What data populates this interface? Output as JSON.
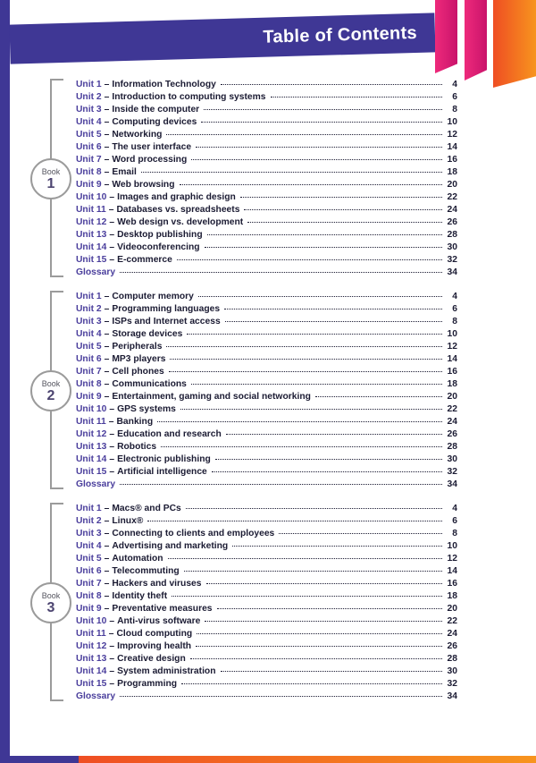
{
  "header": {
    "title": "Table of Contents"
  },
  "separator": "–",
  "colors": {
    "purple": "#3f3795",
    "unit-purple": "#4a3e9c",
    "ink": "#1b1b33",
    "pink": "#ee2a7b",
    "pink-dark": "#c9136b",
    "orange": "#f7941e",
    "orange-dark": "#ef4e23",
    "bracket-gray": "#9b9b9b"
  },
  "books": [
    {
      "label": "Book",
      "number": "1",
      "entries": [
        {
          "unit": "Unit 1",
          "title": "Information Technology",
          "page": 4
        },
        {
          "unit": "Unit 2",
          "title": "Introduction to computing systems",
          "page": 6
        },
        {
          "unit": "Unit 3",
          "title": "Inside the computer",
          "page": 8
        },
        {
          "unit": "Unit 4",
          "title": "Computing devices",
          "page": 10
        },
        {
          "unit": "Unit 5",
          "title": "Networking",
          "page": 12
        },
        {
          "unit": "Unit 6",
          "title": "The user interface",
          "page": 14
        },
        {
          "unit": "Unit 7",
          "title": "Word processing",
          "page": 16
        },
        {
          "unit": "Unit 8",
          "title": "Email",
          "page": 18
        },
        {
          "unit": "Unit 9",
          "title": "Web browsing",
          "page": 20
        },
        {
          "unit": "Unit 10",
          "title": "Images and graphic design",
          "page": 22
        },
        {
          "unit": "Unit 11",
          "title": "Databases vs. spreadsheets",
          "page": 24
        },
        {
          "unit": "Unit 12",
          "title": "Web design vs. development",
          "page": 26
        },
        {
          "unit": "Unit 13",
          "title": "Desktop publishing",
          "page": 28
        },
        {
          "unit": "Unit 14",
          "title": "Videoconferencing",
          "page": 30
        },
        {
          "unit": "Unit 15",
          "title": "E-commerce",
          "page": 32
        },
        {
          "unit": "Glossary",
          "title": "",
          "page": 34
        }
      ]
    },
    {
      "label": "Book",
      "number": "2",
      "entries": [
        {
          "unit": "Unit 1",
          "title": "Computer memory",
          "page": 4
        },
        {
          "unit": "Unit 2",
          "title": "Programming languages",
          "page": 6
        },
        {
          "unit": "Unit 3",
          "title": "ISPs and Internet access",
          "page": 8
        },
        {
          "unit": "Unit 4",
          "title": "Storage devices",
          "page": 10
        },
        {
          "unit": "Unit 5",
          "title": "Peripherals",
          "page": 12
        },
        {
          "unit": "Unit 6",
          "title": "MP3 players",
          "page": 14
        },
        {
          "unit": "Unit 7",
          "title": "Cell phones",
          "page": 16
        },
        {
          "unit": "Unit 8",
          "title": "Communications",
          "page": 18
        },
        {
          "unit": "Unit 9",
          "title": "Entertainment, gaming and social networking",
          "page": 20
        },
        {
          "unit": "Unit 10",
          "title": "GPS systems",
          "page": 22
        },
        {
          "unit": "Unit 11",
          "title": "Banking",
          "page": 24
        },
        {
          "unit": "Unit 12",
          "title": "Education and research",
          "page": 26
        },
        {
          "unit": "Unit 13",
          "title": "Robotics",
          "page": 28
        },
        {
          "unit": "Unit 14",
          "title": "Electronic publishing",
          "page": 30
        },
        {
          "unit": "Unit 15",
          "title": "Artificial intelligence",
          "page": 32
        },
        {
          "unit": "Glossary",
          "title": "",
          "page": 34
        }
      ]
    },
    {
      "label": "Book",
      "number": "3",
      "entries": [
        {
          "unit": "Unit 1",
          "title": "Macs® and PCs",
          "page": 4
        },
        {
          "unit": "Unit 2",
          "title": "Linux®",
          "page": 6
        },
        {
          "unit": "Unit 3",
          "title": "Connecting to clients and employees",
          "page": 8
        },
        {
          "unit": "Unit 4",
          "title": "Advertising and marketing",
          "page": 10
        },
        {
          "unit": "Unit 5",
          "title": "Automation",
          "page": 12
        },
        {
          "unit": "Unit 6",
          "title": "Telecommuting",
          "page": 14
        },
        {
          "unit": "Unit 7",
          "title": "Hackers and viruses",
          "page": 16
        },
        {
          "unit": "Unit 8",
          "title": "Identity theft",
          "page": 18
        },
        {
          "unit": "Unit 9",
          "title": "Preventative measures",
          "page": 20
        },
        {
          "unit": "Unit 10",
          "title": "Anti-virus software",
          "page": 22
        },
        {
          "unit": "Unit 11",
          "title": "Cloud computing",
          "page": 24
        },
        {
          "unit": "Unit 12",
          "title": "Improving health",
          "page": 26
        },
        {
          "unit": "Unit 13",
          "title": "Creative design",
          "page": 28
        },
        {
          "unit": "Unit 14",
          "title": "System administration",
          "page": 30
        },
        {
          "unit": "Unit 15",
          "title": "Programming",
          "page": 32
        },
        {
          "unit": "Glossary",
          "title": "",
          "page": 34
        }
      ]
    }
  ]
}
